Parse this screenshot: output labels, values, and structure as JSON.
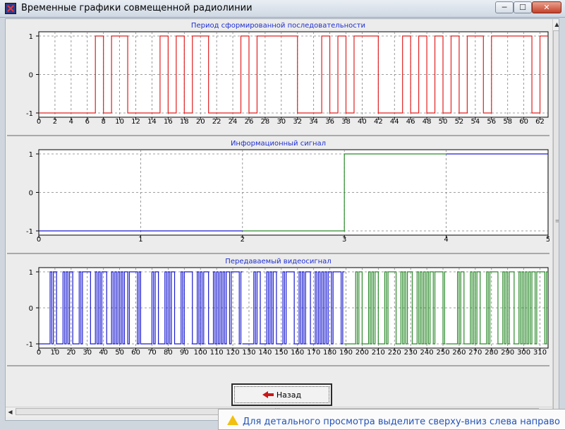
{
  "window": {
    "title": "Временные графики совмещенной радиолинии",
    "minimize_label": "─",
    "maximize_label": "☐",
    "close_label": "✕"
  },
  "back_button": {
    "label": "Назад"
  },
  "status": {
    "text": "Для детального просмотра выделите сверху-вниз слева направо"
  },
  "colors": {
    "red": "#e02020",
    "blue": "#1a1ad0",
    "green": "#2a8a2a",
    "title_blue": "#1f2fd0"
  },
  "chart_data": [
    {
      "type": "line",
      "title": "Период сформированной последовательности",
      "xlim": [
        0,
        63
      ],
      "ylim": [
        -1,
        1
      ],
      "yticks": [
        -1,
        0,
        1
      ],
      "xticks": [
        0,
        2,
        4,
        6,
        8,
        10,
        12,
        14,
        16,
        18,
        20,
        22,
        24,
        26,
        28,
        30,
        32,
        34,
        36,
        38,
        40,
        42,
        44,
        46,
        48,
        50,
        52,
        54,
        56,
        58,
        60,
        62
      ],
      "series": [
        {
          "color": "#e02020",
          "high_intervals": [
            [
              7,
              8
            ],
            [
              9,
              11
            ],
            [
              15,
              16
            ],
            [
              17,
              18
            ],
            [
              19,
              21
            ],
            [
              25,
              26
            ],
            [
              27,
              32
            ],
            [
              35,
              36
            ],
            [
              37,
              38
            ],
            [
              39,
              42
            ],
            [
              45,
              46
            ],
            [
              47,
              48
            ],
            [
              49,
              50
            ],
            [
              51,
              52
            ],
            [
              53,
              55
            ],
            [
              56,
              61
            ],
            [
              62,
              63
            ]
          ]
        }
      ]
    },
    {
      "type": "line",
      "title": "Информационный сигнал",
      "xlim": [
        0,
        5
      ],
      "ylim": [
        -1,
        1
      ],
      "yticks": [
        -1,
        0,
        1
      ],
      "xticks": [
        0,
        1,
        2,
        3,
        4,
        5
      ],
      "series": [
        {
          "color": "#1a1ad0",
          "points": [
            [
              0,
              -1
            ],
            [
              2,
              -1
            ]
          ]
        },
        {
          "color": "#2a8a2a",
          "points": [
            [
              2,
              -1
            ],
            [
              3,
              -1
            ],
            [
              3,
              1
            ],
            [
              4,
              1
            ]
          ]
        },
        {
          "color": "#1a1ad0",
          "points": [
            [
              4,
              1
            ],
            [
              5,
              1
            ]
          ]
        }
      ]
    },
    {
      "type": "line",
      "title": "Передаваемый видеосигнал",
      "xlim": [
        0,
        315
      ],
      "ylim": [
        -1,
        1
      ],
      "yticks": [
        -1,
        0,
        1
      ],
      "xticks": [
        0,
        10,
        20,
        30,
        40,
        50,
        60,
        70,
        80,
        90,
        100,
        110,
        120,
        130,
        140,
        150,
        160,
        170,
        180,
        190,
        200,
        210,
        220,
        230,
        240,
        250,
        260,
        270,
        280,
        290,
        300,
        310
      ],
      "segment_length": 63,
      "series": [
        {
          "color": "#1a1ad0",
          "pattern": "sequence",
          "range": [
            0,
            126
          ]
        },
        {
          "color": "#1a1ad0",
          "pattern": "sequence",
          "range": [
            126,
            189
          ]
        },
        {
          "color": "#2a8a2a",
          "pattern": "sequence",
          "range": [
            189,
            252
          ]
        },
        {
          "color": "#2a8a2a",
          "pattern": "sequence",
          "range": [
            252,
            315
          ]
        }
      ]
    }
  ]
}
